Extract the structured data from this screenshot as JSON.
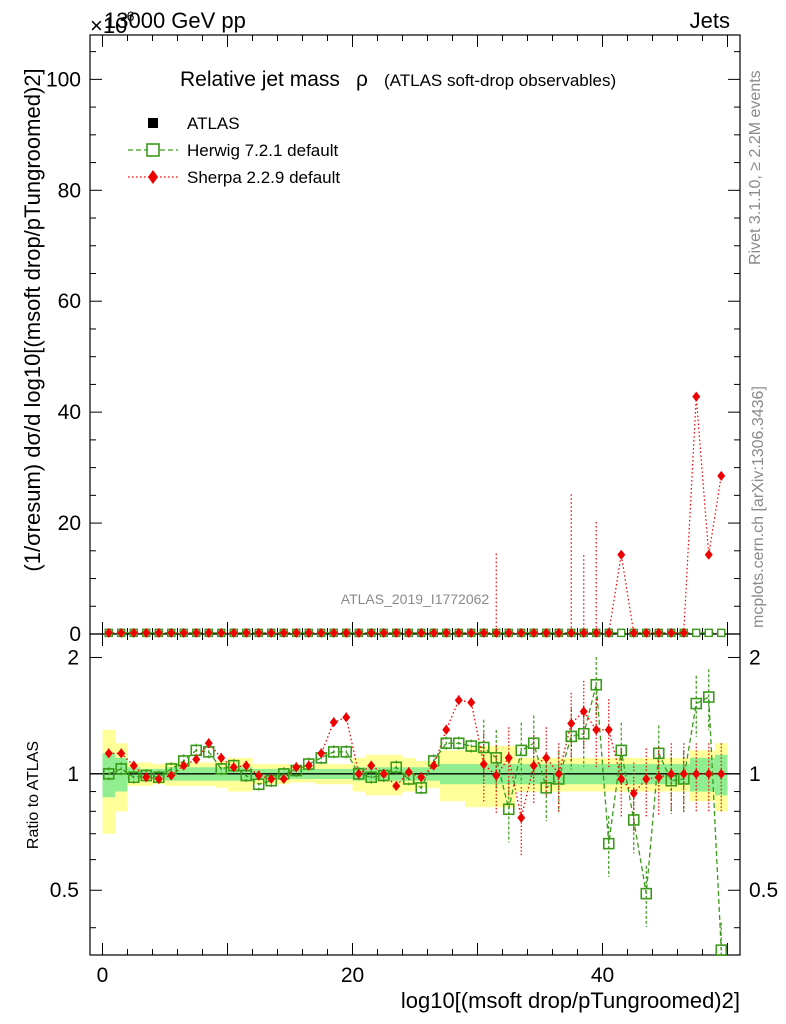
{
  "header": {
    "left_label": "13000 GeV pp",
    "right_label": "Jets",
    "scale_label": "×10",
    "scale_exp": "-6"
  },
  "side": {
    "rivet": "Rivet 3.1.10, ≥ 2.2M events",
    "mcplots": "mcplots.cern.ch [arXiv:1306.3436]"
  },
  "chart_data": {
    "type": "line",
    "title": "Relative jet mass",
    "title_symbol": "ρ",
    "title_note": "(ATLAS soft-drop observables)",
    "watermark": "ATLAS_2019_I1772062",
    "ylabel_main": "(1/σresum) dσ/d log10[(msoft drop/pTungroomed)2]",
    "ylabel_ratio": "Ratio to ATLAS",
    "xlabel": "log10[(msoft drop/pTungroomed)2]",
    "xlim": [
      -1,
      51
    ],
    "ylim_main": [
      0,
      108
    ],
    "ylim_ratio": [
      0.34,
      2.3
    ],
    "x_ticks": [
      "0",
      "20",
      "40"
    ],
    "y_ticks_main": [
      "0",
      "20",
      "40",
      "60",
      "80",
      "100"
    ],
    "y_ticks_ratio": [
      "0.5",
      "1",
      "2"
    ],
    "legend": {
      "atlas": "ATLAS",
      "herwig": "Herwig 7.2.1 default",
      "sherpa": "Sherpa 2.2.9 default"
    },
    "colors": {
      "atlas": "#000000",
      "herwig": "#3a9a1a",
      "sherpa": "#ee0000",
      "band1": "#90ee90",
      "band2": "#ffff99"
    },
    "x": [
      0.5,
      1.5,
      2.5,
      3.5,
      4.5,
      5.5,
      6.5,
      7.5,
      8.5,
      9.5,
      10.5,
      11.5,
      12.5,
      13.5,
      14.5,
      15.5,
      16.5,
      17.5,
      18.5,
      19.5,
      20.5,
      21.5,
      22.5,
      23.5,
      24.5,
      25.5,
      26.5,
      27.5,
      28.5,
      29.5,
      30.5,
      31.5,
      32.5,
      33.5,
      34.5,
      35.5,
      36.5,
      37.5,
      38.5,
      39.5,
      40.5,
      41.5,
      42.5,
      43.5,
      44.5,
      45.5,
      46.5,
      47.5,
      48.5,
      49.5
    ],
    "main_series": {
      "atlas": [
        0.2,
        0.2,
        0.2,
        0.2,
        0.2,
        0.2,
        0.2,
        0.2,
        0.2,
        0.2,
        0.2,
        0.2,
        0.2,
        0.2,
        0.2,
        0.2,
        0.2,
        0.2,
        0.2,
        0.2,
        0.2,
        0.2,
        0.2,
        0.2,
        0.2,
        0.2,
        0.2,
        0.2,
        0.2,
        0.2,
        0.2,
        0.2,
        0.2,
        0.2,
        0.2,
        0.2,
        0.2,
        0.2,
        0.2,
        0.2,
        0.2,
        0.2,
        0.2,
        0.2,
        0.2,
        0.2,
        0.2,
        0.2,
        0.2,
        0.2
      ],
      "herwig": [
        0.2,
        0.2,
        0.2,
        0.2,
        0.2,
        0.2,
        0.2,
        0.2,
        0.2,
        0.2,
        0.2,
        0.2,
        0.2,
        0.2,
        0.2,
        0.2,
        0.2,
        0.2,
        0.2,
        0.2,
        0.2,
        0.2,
        0.2,
        0.2,
        0.2,
        0.2,
        0.2,
        0.2,
        0.2,
        0.2,
        0.2,
        0.2,
        0.2,
        0.2,
        0.2,
        0.2,
        0.2,
        0.2,
        0.2,
        0.2,
        0.2,
        0.2,
        0.2,
        0.2,
        0.2,
        0.2,
        0.2,
        0.2,
        0.2,
        0.2
      ],
      "sherpa": [
        0.2,
        0.2,
        0.2,
        0.2,
        0.2,
        0.2,
        0.2,
        0.2,
        0.2,
        0.2,
        0.2,
        0.2,
        0.2,
        0.2,
        0.2,
        0.2,
        0.2,
        0.2,
        0.2,
        0.2,
        0.2,
        0.2,
        0.2,
        0.2,
        0.2,
        0.2,
        0.2,
        0.2,
        0.2,
        0.2,
        0.2,
        0.2,
        0.2,
        0.2,
        0.2,
        0.2,
        0.2,
        0.2,
        0.2,
        0.2,
        0.2,
        14.3,
        0.2,
        0.2,
        0.2,
        0.2,
        0.2,
        42.8,
        14.3,
        28.5
      ],
      "sherpa_err": [
        0,
        0,
        0,
        0,
        0,
        0,
        0,
        0,
        0,
        0,
        0,
        0,
        0,
        0,
        0,
        0,
        0,
        0,
        0,
        0,
        0,
        0,
        0,
        0,
        0,
        0,
        0,
        0,
        0,
        0,
        0,
        14.3,
        0,
        0,
        0,
        0,
        0,
        25,
        14,
        20
      ]
    },
    "ratio_series": {
      "herwig": [
        1.0,
        1.03,
        0.98,
        0.99,
        0.98,
        1.03,
        1.08,
        1.15,
        1.14,
        1.03,
        1.05,
        0.99,
        0.94,
        0.96,
        1.0,
        1.02,
        1.06,
        1.1,
        1.14,
        1.14,
        1.0,
        0.98,
        0.99,
        1.04,
        0.97,
        0.92,
        1.08,
        1.2,
        1.2,
        1.18,
        1.17,
        1.1,
        0.81,
        1.15,
        1.2,
        0.92,
        0.97,
        1.25,
        1.27,
        1.7,
        0.66,
        1.15,
        0.76,
        0.49,
        1.13,
        0.96,
        0.97,
        1.52,
        1.58,
        0.35
      ],
      "sherpa": [
        1.13,
        1.13,
        1.05,
        0.98,
        0.97,
        0.99,
        1.05,
        1.09,
        1.2,
        1.1,
        1.04,
        1.05,
        0.99,
        0.97,
        0.97,
        1.04,
        1.05,
        1.13,
        1.36,
        1.4,
        1.0,
        1.05,
        1.0,
        0.93,
        1.01,
        0.98,
        1.05,
        1.3,
        1.55,
        1.53,
        1.06,
        0.99,
        1.1,
        0.77,
        1.05,
        1.1,
        1.0,
        1.35,
        1.45,
        1.3,
        1.3,
        0.97,
        0.89,
        0.97,
        0.98,
        1.0,
        1.0,
        1.0,
        1.0,
        1.0
      ],
      "band1_half": [
        0.13,
        0.1,
        0.04,
        0.03,
        0.03,
        0.04,
        0.04,
        0.04,
        0.04,
        0.04,
        0.04,
        0.04,
        0.03,
        0.03,
        0.03,
        0.03,
        0.03,
        0.03,
        0.03,
        0.03,
        0.04,
        0.04,
        0.04,
        0.04,
        0.04,
        0.04,
        0.04,
        0.06,
        0.06,
        0.06,
        0.06,
        0.06,
        0.06,
        0.06,
        0.06,
        0.06,
        0.06,
        0.06,
        0.06,
        0.06,
        0.06,
        0.06,
        0.06,
        0.06,
        0.06,
        0.06,
        0.06,
        0.1,
        0.1,
        0.12
      ],
      "band2_half": [
        0.3,
        0.2,
        0.07,
        0.07,
        0.06,
        0.07,
        0.07,
        0.07,
        0.07,
        0.08,
        0.1,
        0.1,
        0.06,
        0.06,
        0.06,
        0.05,
        0.05,
        0.06,
        0.06,
        0.06,
        0.1,
        0.12,
        0.12,
        0.12,
        0.1,
        0.08,
        0.08,
        0.15,
        0.15,
        0.18,
        0.18,
        0.18,
        0.18,
        0.1,
        0.1,
        0.1,
        0.1,
        0.1,
        0.1,
        0.1,
        0.1,
        0.1,
        0.1,
        0.1,
        0.1,
        0.1,
        0.1,
        0.15,
        0.15,
        0.2
      ]
    }
  }
}
